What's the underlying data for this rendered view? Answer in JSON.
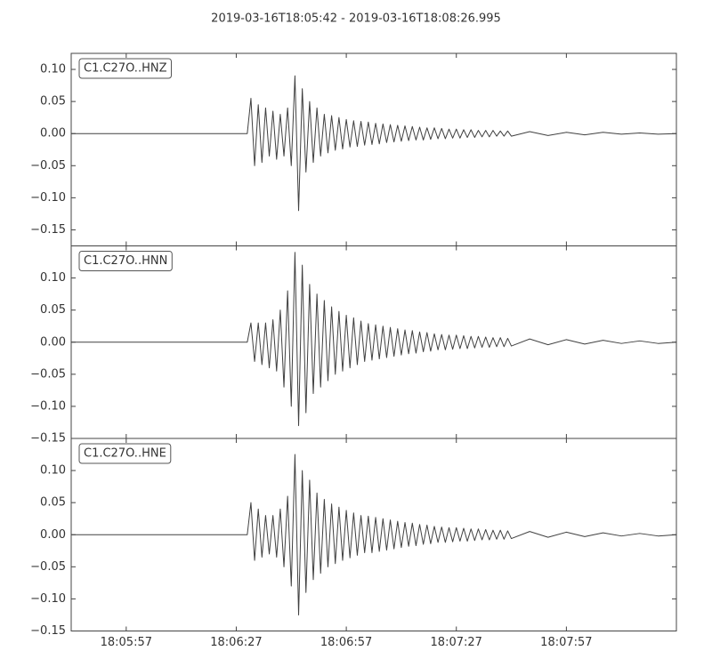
{
  "chart_data": [
    {
      "type": "line",
      "title": "2019-03-16T18:05:42  -  2019-03-16T18:08:26.995",
      "x": [
        0,
        48,
        49,
        50,
        51,
        52,
        53,
        54,
        55,
        56,
        57,
        58,
        59,
        60,
        61,
        62,
        63,
        64,
        65,
        66,
        67,
        68,
        69,
        70,
        71,
        72,
        73,
        74,
        75,
        76,
        77,
        78,
        79,
        80,
        81,
        82,
        83,
        84,
        85,
        86,
        87,
        88,
        89,
        90,
        91,
        92,
        93,
        94,
        95,
        96,
        97,
        98,
        99,
        100,
        101,
        102,
        103,
        104,
        105,
        106,
        107,
        108,
        109,
        110,
        111,
        112,
        113,
        114,
        115,
        116,
        117,
        118,
        119,
        120,
        125,
        130,
        135,
        140,
        145,
        150,
        155,
        160,
        164.995
      ],
      "series": [
        {
          "name": "C1.C27O..HNZ",
          "color": "#404040",
          "values": [
            0,
            0,
            0.055,
            -0.05,
            0.045,
            -0.045,
            0.04,
            -0.035,
            0.035,
            -0.04,
            0.03,
            -0.035,
            0.04,
            -0.05,
            0.09,
            -0.12,
            0.07,
            -0.06,
            0.05,
            -0.045,
            0.04,
            -0.035,
            0.03,
            -0.03,
            0.028,
            -0.026,
            0.025,
            -0.024,
            0.022,
            -0.021,
            0.02,
            -0.02,
            0.019,
            -0.018,
            0.018,
            -0.017,
            0.016,
            -0.016,
            0.015,
            -0.014,
            0.014,
            -0.013,
            0.013,
            -0.012,
            0.012,
            -0.011,
            0.011,
            -0.01,
            0.01,
            -0.01,
            0.009,
            -0.009,
            0.009,
            -0.008,
            0.008,
            -0.008,
            0.007,
            -0.007,
            0.007,
            -0.007,
            0.006,
            -0.006,
            0.006,
            -0.006,
            0.005,
            -0.005,
            0.005,
            -0.005,
            0.005,
            -0.004,
            0.004,
            -0.004,
            0.004,
            -0.004,
            0.003,
            -0.003,
            0.002,
            -0.002,
            0.002,
            -0.001,
            0.001,
            -0.001,
            0
          ]
        }
      ],
      "xlim": [
        0,
        164.995
      ],
      "xticks": [
        15,
        45,
        75,
        105,
        135
      ],
      "ylim": [
        -0.175,
        0.125
      ],
      "yticks": [
        {
          "value": -0.15,
          "label": "−0.15"
        },
        {
          "value": -0.1,
          "label": "−0.10"
        },
        {
          "value": -0.05,
          "label": "−0.05"
        },
        {
          "value": 0,
          "label": "0.00"
        },
        {
          "value": 0.05,
          "label": "0.05"
        },
        {
          "value": 0.1,
          "label": "0.10"
        }
      ]
    },
    {
      "type": "line",
      "x": [
        0,
        48,
        49,
        50,
        51,
        52,
        53,
        54,
        55,
        56,
        57,
        58,
        59,
        60,
        61,
        62,
        63,
        64,
        65,
        66,
        67,
        68,
        69,
        70,
        71,
        72,
        73,
        74,
        75,
        76,
        77,
        78,
        79,
        80,
        81,
        82,
        83,
        84,
        85,
        86,
        87,
        88,
        89,
        90,
        91,
        92,
        93,
        94,
        95,
        96,
        97,
        98,
        99,
        100,
        101,
        102,
        103,
        104,
        105,
        106,
        107,
        108,
        109,
        110,
        111,
        112,
        113,
        114,
        115,
        116,
        117,
        118,
        119,
        120,
        125,
        130,
        135,
        140,
        145,
        150,
        155,
        160,
        164.995
      ],
      "series": [
        {
          "name": "C1.C27O..HNN",
          "color": "#404040",
          "values": [
            0,
            0,
            0.03,
            -0.03,
            0.03,
            -0.035,
            0.03,
            -0.04,
            0.035,
            -0.045,
            0.05,
            -0.07,
            0.08,
            -0.1,
            0.14,
            -0.13,
            0.12,
            -0.11,
            0.09,
            -0.08,
            0.075,
            -0.07,
            0.065,
            -0.06,
            0.055,
            -0.05,
            0.048,
            -0.045,
            0.042,
            -0.04,
            0.038,
            -0.035,
            0.033,
            -0.03,
            0.029,
            -0.028,
            0.027,
            -0.026,
            0.025,
            -0.024,
            0.023,
            -0.022,
            0.021,
            -0.02,
            0.019,
            -0.018,
            0.018,
            -0.017,
            0.016,
            -0.015,
            0.015,
            -0.014,
            0.013,
            -0.012,
            0.012,
            -0.012,
            0.011,
            -0.011,
            0.011,
            -0.01,
            0.01,
            -0.01,
            0.009,
            -0.009,
            0.009,
            -0.008,
            0.008,
            -0.008,
            0.007,
            -0.007,
            0.007,
            -0.007,
            0.006,
            -0.006,
            0.005,
            -0.004,
            0.004,
            -0.003,
            0.003,
            -0.002,
            0.002,
            -0.002,
            0
          ]
        }
      ],
      "xlim": [
        0,
        164.995
      ],
      "xticks": [
        15,
        45,
        75,
        105,
        135
      ],
      "ylim": [
        -0.15,
        0.15
      ],
      "yticks": [
        {
          "value": -0.15,
          "label": "−0.15"
        },
        {
          "value": -0.1,
          "label": "−0.10"
        },
        {
          "value": -0.05,
          "label": "−0.05"
        },
        {
          "value": 0,
          "label": "0.00"
        },
        {
          "value": 0.05,
          "label": "0.05"
        },
        {
          "value": 0.1,
          "label": "0.10"
        }
      ]
    },
    {
      "type": "line",
      "x": [
        0,
        48,
        49,
        50,
        51,
        52,
        53,
        54,
        55,
        56,
        57,
        58,
        59,
        60,
        61,
        62,
        63,
        64,
        65,
        66,
        67,
        68,
        69,
        70,
        71,
        72,
        73,
        74,
        75,
        76,
        77,
        78,
        79,
        80,
        81,
        82,
        83,
        84,
        85,
        86,
        87,
        88,
        89,
        90,
        91,
        92,
        93,
        94,
        95,
        96,
        97,
        98,
        99,
        100,
        101,
        102,
        103,
        104,
        105,
        106,
        107,
        108,
        109,
        110,
        111,
        112,
        113,
        114,
        115,
        116,
        117,
        118,
        119,
        120,
        125,
        130,
        135,
        140,
        145,
        150,
        155,
        160,
        164.995
      ],
      "series": [
        {
          "name": "C1.C27O..HNE",
          "color": "#404040",
          "values": [
            0,
            0,
            0.05,
            -0.04,
            0.04,
            -0.035,
            0.03,
            -0.03,
            0.03,
            -0.035,
            0.04,
            -0.05,
            0.06,
            -0.08,
            0.125,
            -0.125,
            0.1,
            -0.09,
            0.085,
            -0.07,
            0.065,
            -0.06,
            0.055,
            -0.05,
            0.048,
            -0.045,
            0.043,
            -0.04,
            0.038,
            -0.036,
            0.034,
            -0.032,
            0.03,
            -0.028,
            0.029,
            -0.028,
            0.027,
            -0.026,
            0.025,
            -0.024,
            0.023,
            -0.022,
            0.021,
            -0.02,
            0.019,
            -0.018,
            0.018,
            -0.017,
            0.016,
            -0.015,
            0.015,
            -0.014,
            0.013,
            -0.012,
            0.012,
            -0.012,
            0.011,
            -0.011,
            0.011,
            -0.01,
            0.01,
            -0.01,
            0.009,
            -0.009,
            0.009,
            -0.008,
            0.008,
            -0.008,
            0.007,
            -0.007,
            0.007,
            -0.007,
            0.006,
            -0.006,
            0.005,
            -0.004,
            0.004,
            -0.003,
            0.003,
            -0.002,
            0.002,
            -0.002,
            0
          ]
        }
      ],
      "xlim": [
        0,
        164.995
      ],
      "xticks": [
        {
          "value": 15,
          "label": "18:05:57"
        },
        {
          "value": 45,
          "label": "18:06:27"
        },
        {
          "value": 75,
          "label": "18:06:57"
        },
        {
          "value": 105,
          "label": "18:07:27"
        },
        {
          "value": 135,
          "label": "18:07:57"
        }
      ],
      "ylim": [
        -0.15,
        0.15
      ],
      "yticks": [
        {
          "value": -0.15,
          "label": "−0.15"
        },
        {
          "value": -0.1,
          "label": "−0.10"
        },
        {
          "value": -0.05,
          "label": "−0.05"
        },
        {
          "value": 0,
          "label": "0.00"
        },
        {
          "value": 0.05,
          "label": "0.05"
        },
        {
          "value": 0.1,
          "label": "0.10"
        }
      ]
    }
  ]
}
